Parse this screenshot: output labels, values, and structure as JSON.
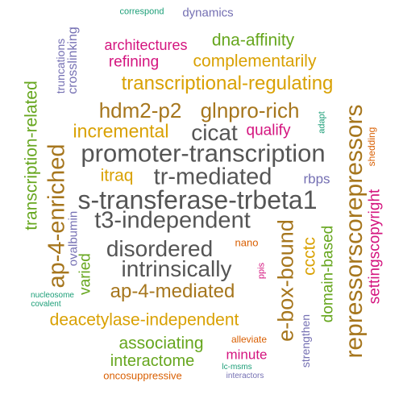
{
  "cloud": {
    "palette": {
      "green": "#66a61e",
      "teal": "#1b9e77",
      "purple": "#7570b3",
      "magenta": "#d4157f",
      "orange": "#d95f02",
      "gold": "#d9a103",
      "brown": "#a6761d",
      "gray": "#555555"
    },
    "words": [
      "correspond",
      "dynamics",
      "crosslinking",
      "truncations",
      "architectures",
      "dna-affinity",
      "refining",
      "complementarily",
      "transcription-related",
      "transcriptional-regulating",
      "hdm2-p2",
      "glnpro-rich",
      "repressorscorepressors",
      "incremental",
      "cicat",
      "qualify",
      "adapt",
      "shedding",
      "promoter-transcription",
      "ap-4-enriched",
      "itraq",
      "tr-mediated",
      "rbps",
      "s-transferase-trbeta1",
      "settingscopyright",
      "t3-independent",
      "ovalbumin",
      "disordered",
      "nano",
      "e-box-bound",
      "intrinsically",
      "ccctc",
      "domain-based",
      "ppis",
      "varied",
      "ap-4-mediated",
      "nucleosome",
      "covalent",
      "deacetylase-independent",
      "associating",
      "alleviate",
      "strengthen",
      "interactome",
      "minute",
      "lc-msms",
      "interactors",
      "oncosuppressive"
    ]
  }
}
